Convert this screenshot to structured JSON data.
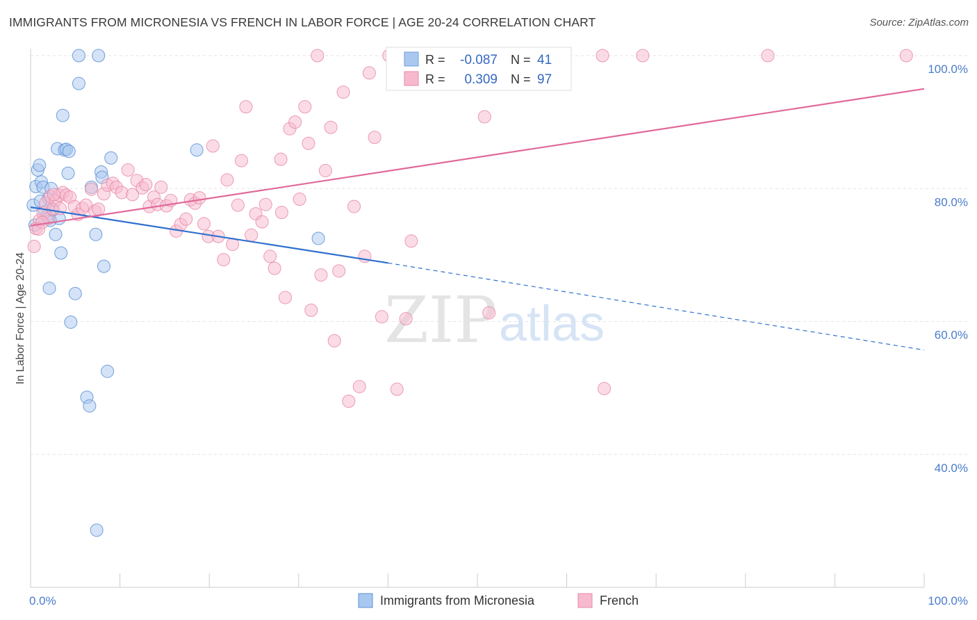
{
  "title": "IMMIGRANTS FROM MICRONESIA VS FRENCH IN LABOR FORCE | AGE 20-24 CORRELATION CHART",
  "source": "Source: ZipAtlas.com",
  "watermark": {
    "zip": "ZIP",
    "atlas": "atlas"
  },
  "chart_data": {
    "type": "scatter",
    "title": "IMMIGRANTS FROM MICRONESIA VS FRENCH IN LABOR FORCE | AGE 20-24 CORRELATION CHART",
    "xlabel": "",
    "ylabel": "In Labor Force | Age 20-24",
    "xlim": [
      0,
      100
    ],
    "ylim": [
      20,
      102
    ],
    "x_tick_labels": [
      "0.0%",
      "100.0%"
    ],
    "y_ticks": [
      {
        "value": 100,
        "label": "100.0%"
      },
      {
        "value": 80,
        "label": "80.0%"
      },
      {
        "value": 60,
        "label": "60.0%"
      },
      {
        "value": 40,
        "label": "40.0%"
      }
    ],
    "grid": true,
    "legend_position": "bottom",
    "stats": {
      "r_label": "R =",
      "n_label": "N =",
      "rows": [
        {
          "r": "-0.087",
          "n": "41",
          "color": "#a9c8f0",
          "edge": "#6f9edc"
        },
        {
          "r": "0.309",
          "n": "97",
          "color": "#f7b9cd",
          "edge": "#e88aa8"
        }
      ]
    },
    "series": [
      {
        "name": "Immigrants from Micronesia",
        "color": "#a9c8f0",
        "edge": "#5b8fd6",
        "line_color": "#2f6fcf",
        "trend": {
          "x0": 0,
          "y0": 77.2,
          "x1": 40,
          "y1": 68.8,
          "dash_x1": 100,
          "dash_y1": 55.7
        },
        "points": [
          [
            0.3,
            77.5
          ],
          [
            0.5,
            74.5
          ],
          [
            0.6,
            80.3
          ],
          [
            0.8,
            82.8
          ],
          [
            1.0,
            83.5
          ],
          [
            1.2,
            81.0
          ],
          [
            1.4,
            80.2
          ],
          [
            1.6,
            76.5
          ],
          [
            1.8,
            75.8
          ],
          [
            2.0,
            78.5
          ],
          [
            2.2,
            75.2
          ],
          [
            2.3,
            80.0
          ],
          [
            2.5,
            76.8
          ],
          [
            2.8,
            73.1
          ],
          [
            3.0,
            86.0
          ],
          [
            3.2,
            75.5
          ],
          [
            3.4,
            70.3
          ],
          [
            3.6,
            91.0
          ],
          [
            3.8,
            85.8
          ],
          [
            4.0,
            85.9
          ],
          [
            4.2,
            82.3
          ],
          [
            2.1,
            65.0
          ],
          [
            4.5,
            59.9
          ],
          [
            5.0,
            64.2
          ],
          [
            5.4,
            100.0
          ],
          [
            5.4,
            95.8
          ],
          [
            6.3,
            48.6
          ],
          [
            6.6,
            47.3
          ],
          [
            6.8,
            80.2
          ],
          [
            7.3,
            73.1
          ],
          [
            7.6,
            100.0
          ],
          [
            7.9,
            82.5
          ],
          [
            8.0,
            81.7
          ],
          [
            8.2,
            68.3
          ],
          [
            8.6,
            52.5
          ],
          [
            9.0,
            84.6
          ],
          [
            7.4,
            28.6
          ],
          [
            18.6,
            85.8
          ],
          [
            32.2,
            72.5
          ],
          [
            4.3,
            85.6
          ],
          [
            1.1,
            78.1
          ]
        ]
      },
      {
        "name": "French",
        "color": "#f7b9cd",
        "edge": "#e88aa8",
        "line_color": "#e0699a",
        "trend": {
          "x0": 0,
          "y0": 74.4,
          "x1": 100,
          "y1": 95.0
        },
        "points": [
          [
            0.4,
            71.3
          ],
          [
            0.6,
            74.0
          ],
          [
            1.0,
            75.2
          ],
          [
            1.4,
            76.3
          ],
          [
            1.7,
            77.8
          ],
          [
            2.0,
            75.5
          ],
          [
            2.2,
            78.8
          ],
          [
            2.5,
            76.9
          ],
          [
            2.8,
            78.2
          ],
          [
            3.2,
            79.0
          ],
          [
            3.6,
            79.4
          ],
          [
            4.0,
            79.0
          ],
          [
            4.4,
            78.7
          ],
          [
            4.9,
            77.3
          ],
          [
            5.3,
            76.1
          ],
          [
            5.8,
            77.0
          ],
          [
            6.2,
            77.5
          ],
          [
            6.8,
            79.9
          ],
          [
            7.2,
            76.6
          ],
          [
            7.6,
            76.9
          ],
          [
            8.2,
            79.2
          ],
          [
            8.6,
            80.5
          ],
          [
            9.2,
            80.8
          ],
          [
            9.6,
            80.2
          ],
          [
            10.2,
            79.4
          ],
          [
            10.9,
            82.8
          ],
          [
            11.4,
            79.1
          ],
          [
            11.9,
            81.2
          ],
          [
            12.5,
            80.1
          ],
          [
            12.9,
            80.6
          ],
          [
            13.3,
            77.3
          ],
          [
            13.8,
            78.7
          ],
          [
            14.2,
            77.6
          ],
          [
            14.6,
            80.2
          ],
          [
            15.2,
            77.4
          ],
          [
            15.7,
            78.2
          ],
          [
            16.3,
            73.6
          ],
          [
            16.8,
            74.6
          ],
          [
            17.4,
            75.4
          ],
          [
            17.9,
            78.3
          ],
          [
            18.4,
            77.8
          ],
          [
            18.9,
            78.6
          ],
          [
            19.4,
            74.7
          ],
          [
            19.9,
            72.8
          ],
          [
            20.4,
            86.4
          ],
          [
            21.0,
            72.8
          ],
          [
            21.6,
            69.3
          ],
          [
            22.0,
            81.3
          ],
          [
            22.6,
            71.6
          ],
          [
            23.2,
            77.5
          ],
          [
            23.6,
            84.2
          ],
          [
            24.1,
            92.3
          ],
          [
            24.7,
            73.0
          ],
          [
            25.2,
            76.2
          ],
          [
            25.9,
            75.0
          ],
          [
            26.3,
            77.6
          ],
          [
            26.8,
            69.8
          ],
          [
            27.3,
            68.0
          ],
          [
            28.0,
            84.4
          ],
          [
            28.5,
            63.6
          ],
          [
            28.1,
            76.4
          ],
          [
            29.0,
            89.0
          ],
          [
            29.6,
            90.0
          ],
          [
            30.1,
            78.4
          ],
          [
            30.7,
            92.3
          ],
          [
            31.1,
            86.8
          ],
          [
            31.4,
            61.7
          ],
          [
            32.1,
            100.0
          ],
          [
            32.5,
            67.0
          ],
          [
            33.0,
            82.7
          ],
          [
            33.6,
            89.2
          ],
          [
            34.0,
            57.1
          ],
          [
            34.5,
            67.6
          ],
          [
            35.0,
            94.5
          ],
          [
            35.6,
            48.0
          ],
          [
            36.2,
            77.3
          ],
          [
            36.8,
            50.2
          ],
          [
            37.4,
            69.8
          ],
          [
            37.9,
            97.4
          ],
          [
            38.5,
            87.7
          ],
          [
            39.3,
            60.7
          ],
          [
            40.1,
            100.0
          ],
          [
            41.0,
            49.8
          ],
          [
            42.0,
            60.4
          ],
          [
            42.6,
            72.1
          ],
          [
            46.8,
            100.0
          ],
          [
            50.8,
            90.8
          ],
          [
            51.3,
            61.3
          ],
          [
            64.0,
            100.0
          ],
          [
            64.2,
            49.9
          ],
          [
            68.5,
            100.0
          ],
          [
            82.5,
            100.0
          ],
          [
            98.0,
            100.0
          ],
          [
            1.3,
            74.9
          ],
          [
            2.6,
            79.1
          ],
          [
            3.3,
            77.0
          ],
          [
            0.9,
            73.9
          ]
        ]
      }
    ]
  }
}
